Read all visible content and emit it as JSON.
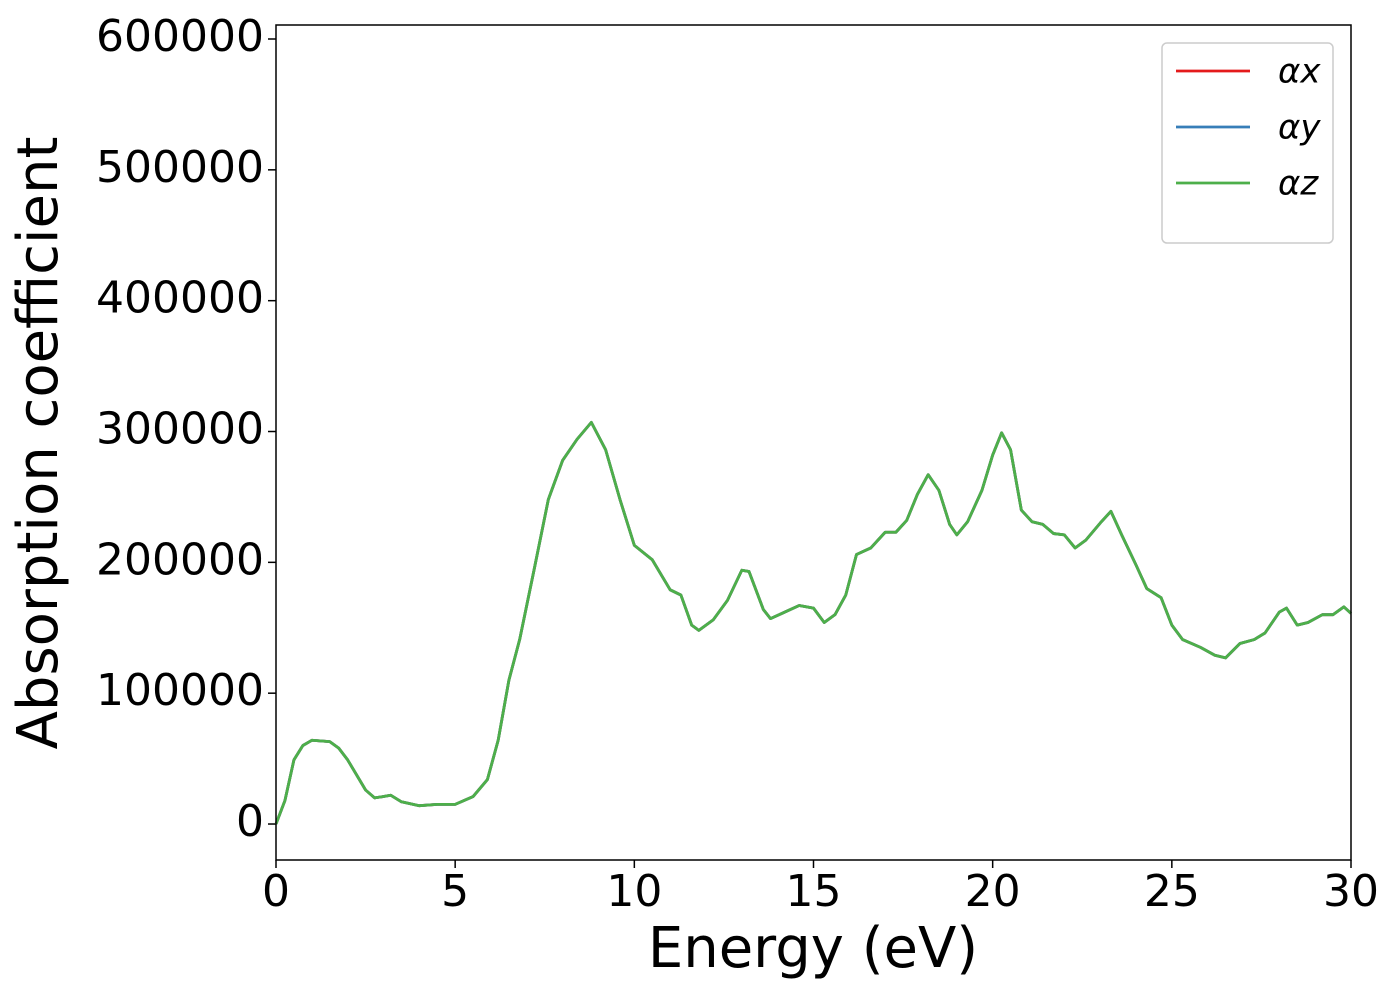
{
  "chart_data": {
    "type": "line",
    "xlabel": "Energy (eV)",
    "ylabel": "Absorption coefficient",
    "x": [
      0,
      0.25,
      0.5,
      0.75,
      1.0,
      1.5,
      1.75,
      2.0,
      2.5,
      2.75,
      3.0,
      3.2,
      3.5,
      4.0,
      4.5,
      5.0,
      5.5,
      5.9,
      6.2,
      6.5,
      6.8,
      7.2,
      7.6,
      8.0,
      8.4,
      8.8,
      9.2,
      9.6,
      10.0,
      10.5,
      11.0,
      11.3,
      11.6,
      11.8,
      12.2,
      12.6,
      13.0,
      13.2,
      13.6,
      13.8,
      14.2,
      14.6,
      15.0,
      15.3,
      15.6,
      15.9,
      16.2,
      16.6,
      17.0,
      17.3,
      17.6,
      17.9,
      18.2,
      18.5,
      18.8,
      19.0,
      19.3,
      19.7,
      20.0,
      20.25,
      20.5,
      20.8,
      21.1,
      21.4,
      21.7,
      22.0,
      22.3,
      22.6,
      23.0,
      23.3,
      23.6,
      24.0,
      24.3,
      24.7,
      25.0,
      25.3,
      25.8,
      26.2,
      26.5,
      26.9,
      27.3,
      27.6,
      28.0,
      28.2,
      28.5,
      28.8,
      29.2,
      29.5,
      29.8,
      30.0
    ],
    "series": [
      {
        "name": "αx",
        "color": "#e41a1c",
        "values": [
          0,
          18000,
          49000,
          60000,
          64000,
          63000,
          58000,
          49000,
          26000,
          20000,
          21000,
          22000,
          17000,
          14000,
          15000,
          15000,
          21000,
          34000,
          64000,
          110000,
          141000,
          194000,
          248000,
          278000,
          294000,
          307000,
          286000,
          248000,
          213000,
          202000,
          179000,
          175000,
          152000,
          148000,
          156000,
          171000,
          194000,
          193000,
          164000,
          157000,
          162000,
          167000,
          165000,
          154000,
          160000,
          175000,
          206000,
          211000,
          223000,
          223000,
          232000,
          252000,
          267000,
          255000,
          229000,
          221000,
          231000,
          255000,
          282000,
          299000,
          286000,
          240000,
          231000,
          229000,
          222000,
          221000,
          211000,
          217000,
          230000,
          239000,
          221000,
          198000,
          180000,
          173000,
          152000,
          141000,
          135000,
          129000,
          127000,
          138000,
          141000,
          146000,
          162000,
          165000,
          152000,
          154000,
          160000,
          160000,
          166000,
          161000
        ]
      },
      {
        "name": "αy",
        "color": "#377eb8",
        "values": [
          0,
          18000,
          49000,
          60000,
          64000,
          63000,
          58000,
          49000,
          26000,
          20000,
          21000,
          22000,
          17000,
          14000,
          15000,
          15000,
          21000,
          34000,
          64000,
          110000,
          141000,
          194000,
          248000,
          278000,
          294000,
          307000,
          286000,
          248000,
          213000,
          202000,
          179000,
          175000,
          152000,
          148000,
          156000,
          171000,
          194000,
          193000,
          164000,
          157000,
          162000,
          167000,
          165000,
          154000,
          160000,
          175000,
          206000,
          211000,
          223000,
          223000,
          232000,
          252000,
          267000,
          255000,
          229000,
          221000,
          231000,
          255000,
          282000,
          299000,
          286000,
          240000,
          231000,
          229000,
          222000,
          221000,
          211000,
          217000,
          230000,
          239000,
          221000,
          198000,
          180000,
          173000,
          152000,
          141000,
          135000,
          129000,
          127000,
          138000,
          141000,
          146000,
          162000,
          165000,
          152000,
          154000,
          160000,
          160000,
          166000,
          161000
        ]
      },
      {
        "name": "αz",
        "color": "#4daf4a",
        "values": [
          0,
          18000,
          49000,
          60000,
          64000,
          63000,
          58000,
          49000,
          26000,
          20000,
          21000,
          22000,
          17000,
          14000,
          15000,
          15000,
          21000,
          34000,
          64000,
          110000,
          141000,
          194000,
          248000,
          278000,
          294000,
          307000,
          286000,
          248000,
          213000,
          202000,
          179000,
          175000,
          152000,
          148000,
          156000,
          171000,
          194000,
          193000,
          164000,
          157000,
          162000,
          167000,
          165000,
          154000,
          160000,
          175000,
          206000,
          211000,
          223000,
          223000,
          232000,
          252000,
          267000,
          255000,
          229000,
          221000,
          231000,
          255000,
          282000,
          299000,
          286000,
          240000,
          231000,
          229000,
          222000,
          221000,
          211000,
          217000,
          230000,
          239000,
          221000,
          198000,
          180000,
          173000,
          152000,
          141000,
          135000,
          129000,
          127000,
          138000,
          141000,
          146000,
          162000,
          165000,
          152000,
          154000,
          160000,
          160000,
          166000,
          161000
        ]
      }
    ],
    "xlim": [
      0,
      30
    ],
    "xticks": [
      0,
      5,
      10,
      15,
      20,
      25,
      30
    ],
    "ylim": [
      -27500,
      610700
    ],
    "yticks": [
      0,
      100000,
      200000,
      300000,
      400000,
      500000,
      600000
    ],
    "legend": "upper right"
  }
}
